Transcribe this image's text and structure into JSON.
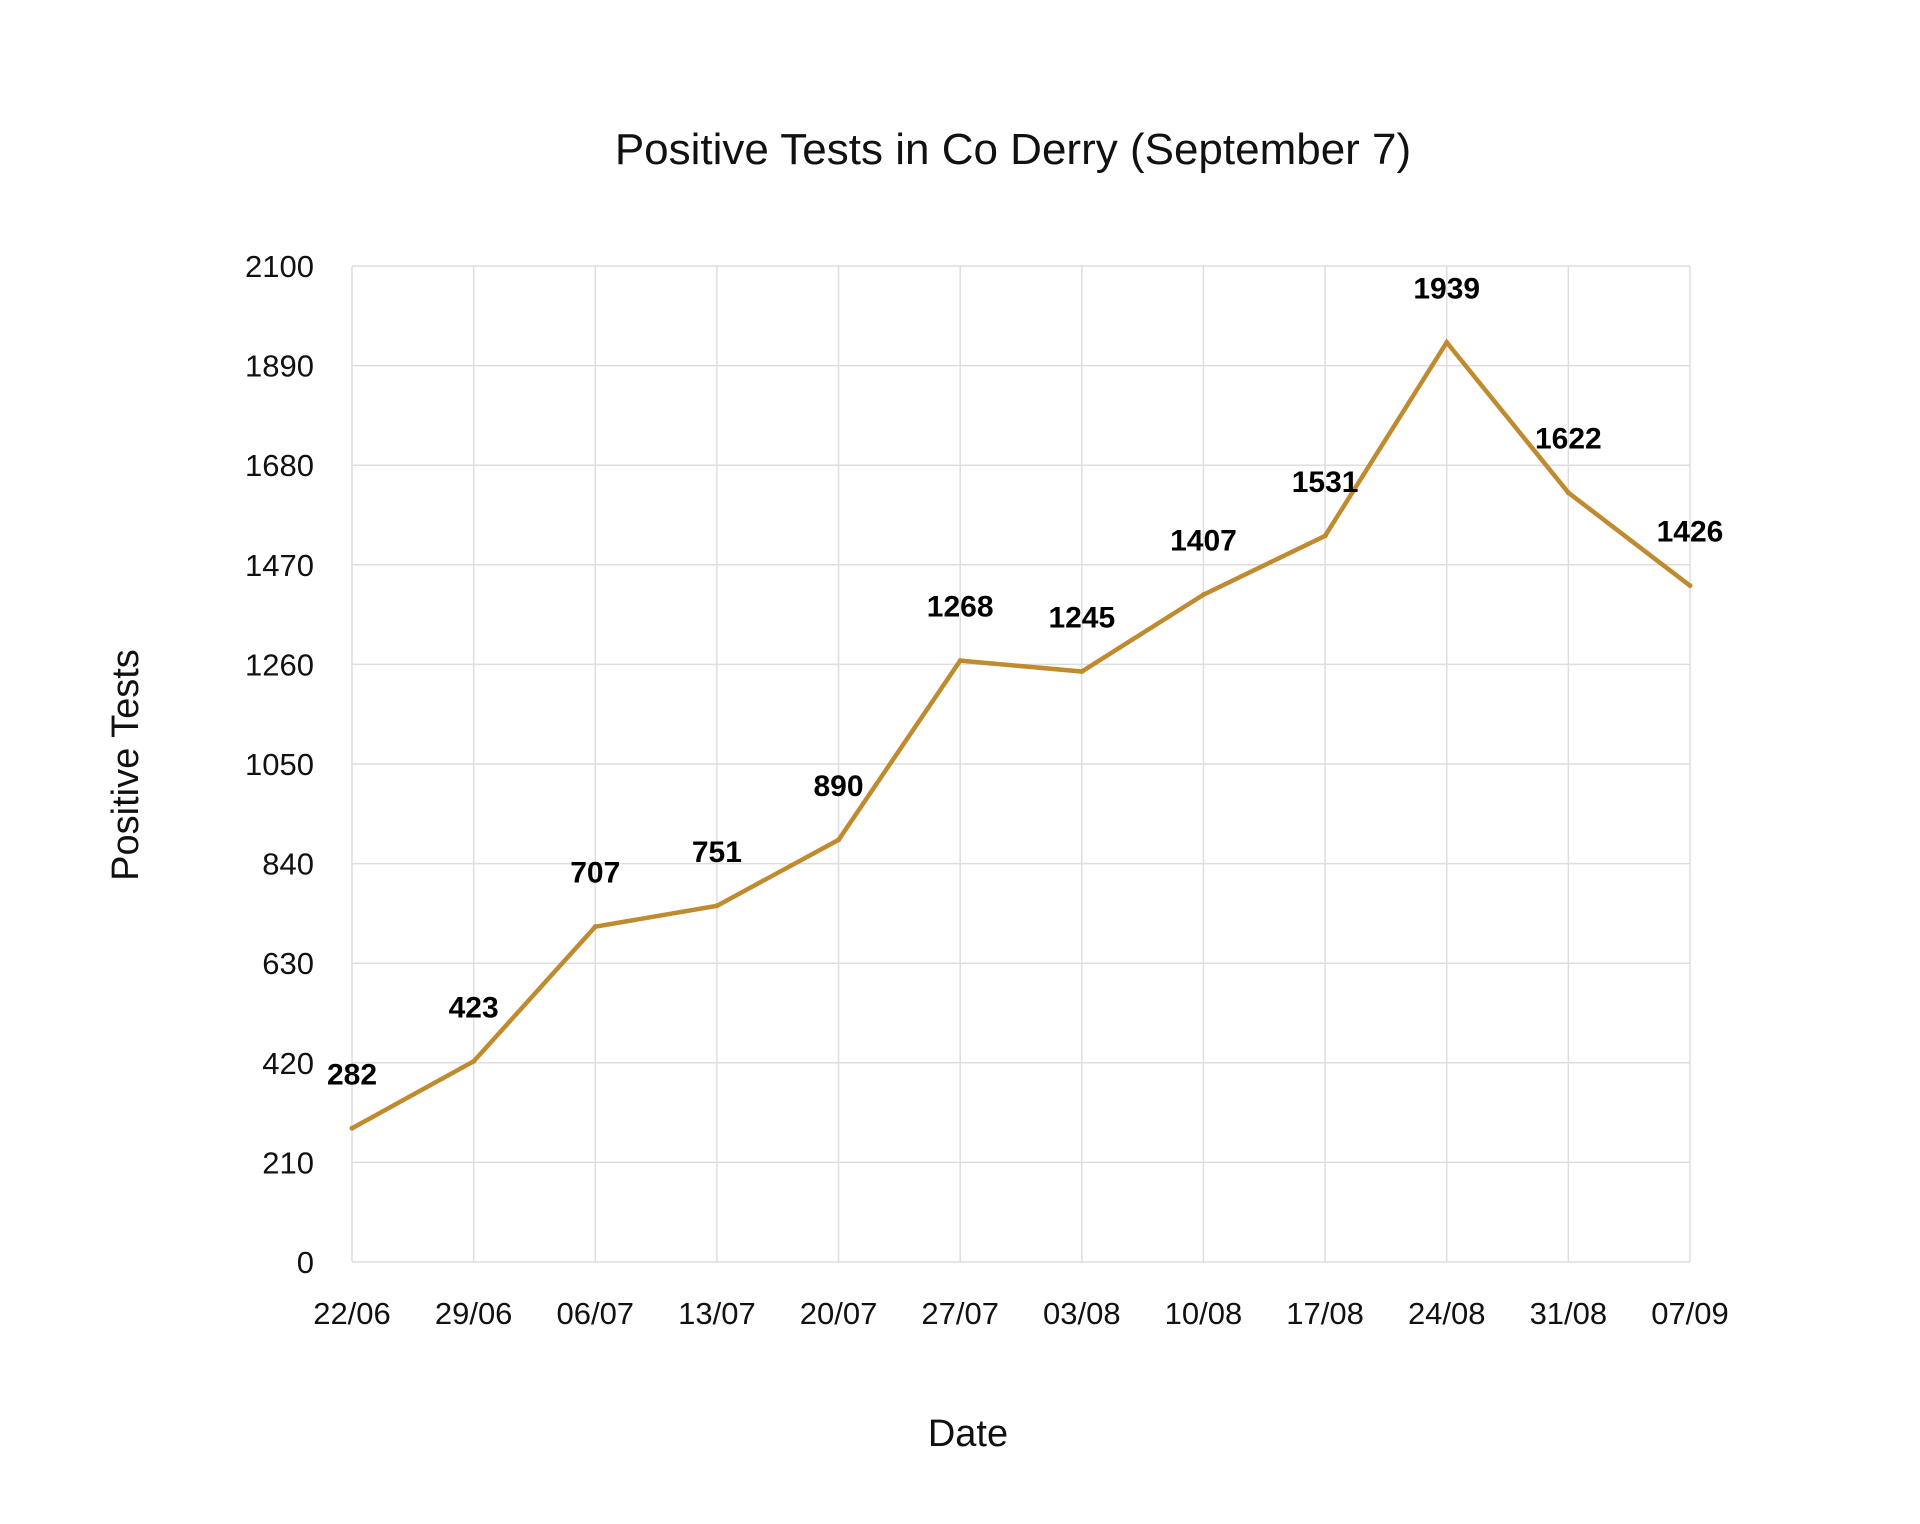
{
  "chart_data": {
    "type": "line",
    "title": "Positive Tests in Co Derry (September 7)",
    "xlabel": "Date",
    "ylabel": "Positive Tests",
    "categories": [
      "22/06",
      "29/06",
      "06/07",
      "13/07",
      "20/07",
      "27/07",
      "03/08",
      "10/08",
      "17/08",
      "24/08",
      "31/08",
      "07/09"
    ],
    "series": [
      {
        "values": [
          282,
          423,
          707,
          751,
          890,
          1268,
          1245,
          1407,
          1531,
          1939,
          1622,
          1426
        ]
      }
    ],
    "ylim": [
      0,
      2100
    ],
    "yticks": [
      0,
      210,
      420,
      630,
      840,
      1050,
      1260,
      1470,
      1680,
      1890,
      2100
    ],
    "grid": true,
    "data_labels": true,
    "colors": {
      "line": "#C08A2E"
    }
  }
}
